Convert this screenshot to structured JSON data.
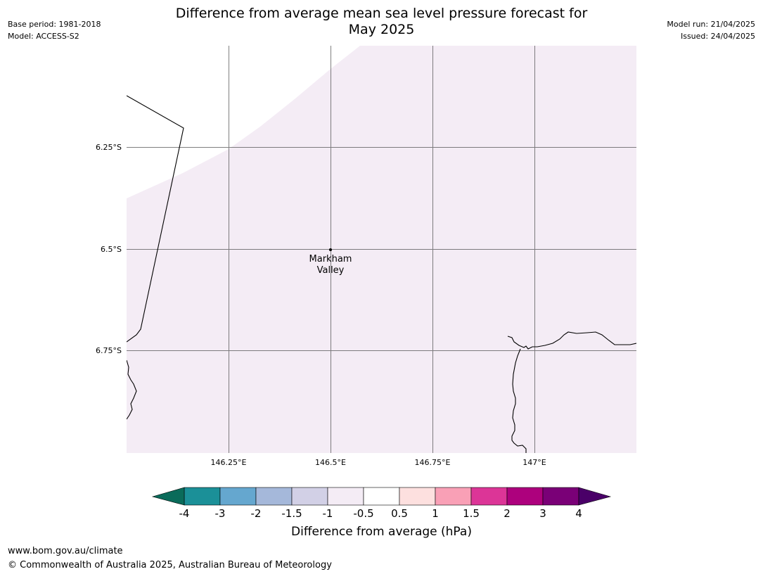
{
  "header": {
    "title_line1": "Difference from average mean sea level pressure forecast for",
    "title_line2": "May 2025",
    "base_period": "Base period: 1981-2018",
    "model": "Model: ACCESS-S2",
    "model_run": "Model run: 21/04/2025",
    "issued": "Issued: 24/04/2025"
  },
  "map": {
    "lat_labels": [
      "6.25°S",
      "6.5°S",
      "6.75°S"
    ],
    "lon_labels": [
      "146.25°E",
      "146.5°E",
      "146.75°E",
      "147°E"
    ],
    "place": {
      "name_line1": "Markham",
      "name_line2": "Valley"
    },
    "fill_color": "#f4ecf5",
    "grid_color": "#555555"
  },
  "colorbar": {
    "label": "Difference from average (hPa)",
    "ticks": [
      "-4",
      "-3",
      "-2",
      "-1.5",
      "-1",
      "-0.5",
      "0.5",
      "1",
      "1.5",
      "2",
      "3",
      "4"
    ],
    "under_color": "#0a6b5a",
    "over_color": "#4a0068",
    "colors": [
      "#1b9098",
      "#65a7cf",
      "#a5b8da",
      "#d2d0e6",
      "#f4ecf5",
      "#ffffff",
      "#fde0df",
      "#f9a0b6",
      "#dc3597",
      "#ad017d",
      "#7a0077"
    ]
  },
  "footer": {
    "url": "www.bom.gov.au/climate",
    "copyright": "© Commonwealth of Australia 2025, Australian Bureau of Meteorology"
  }
}
